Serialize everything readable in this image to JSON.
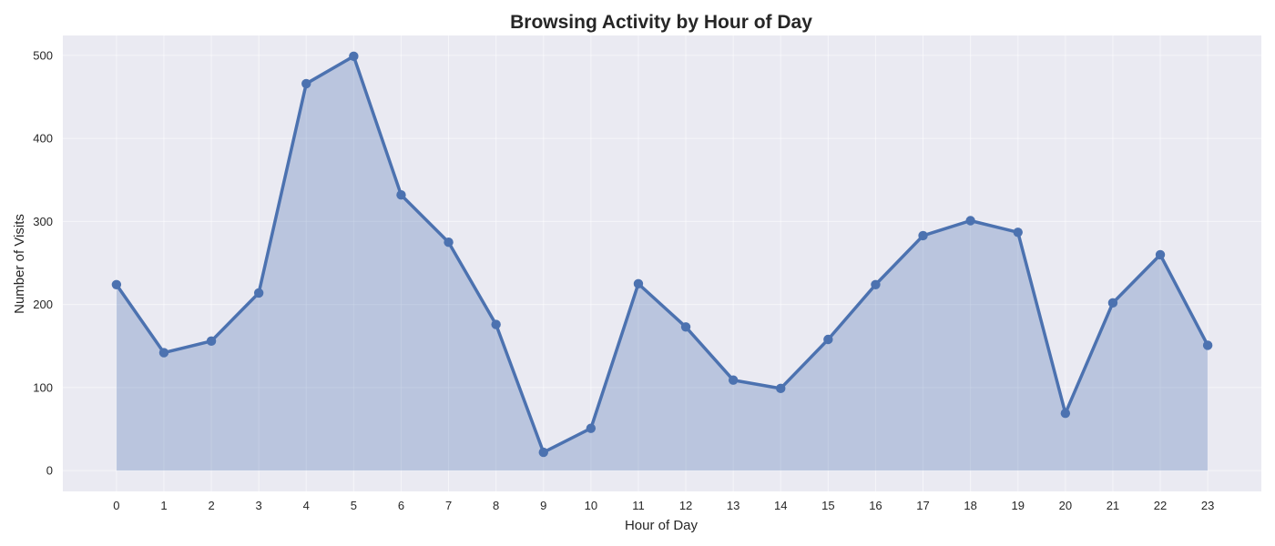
{
  "chart_data": {
    "type": "area",
    "title": "Browsing Activity by Hour of Day",
    "xlabel": "Hour of Day",
    "ylabel": "Number of Visits",
    "x": [
      0,
      1,
      2,
      3,
      4,
      5,
      6,
      7,
      8,
      9,
      10,
      11,
      12,
      13,
      14,
      15,
      16,
      17,
      18,
      19,
      20,
      21,
      22,
      23
    ],
    "y": [
      224,
      142,
      156,
      214,
      466,
      499,
      332,
      275,
      176,
      22,
      51,
      225,
      173,
      109,
      99,
      158,
      224,
      283,
      301,
      287,
      69,
      202,
      260,
      151
    ],
    "xlim": [
      -1.13,
      24.13
    ],
    "ylim": [
      -25,
      524
    ],
    "yticks": [
      0,
      100,
      200,
      300,
      400,
      500
    ],
    "grid": true,
    "colors": {
      "line": "#4c72b0",
      "fill": "#4c72b0",
      "background": "#eaeaf2"
    }
  }
}
